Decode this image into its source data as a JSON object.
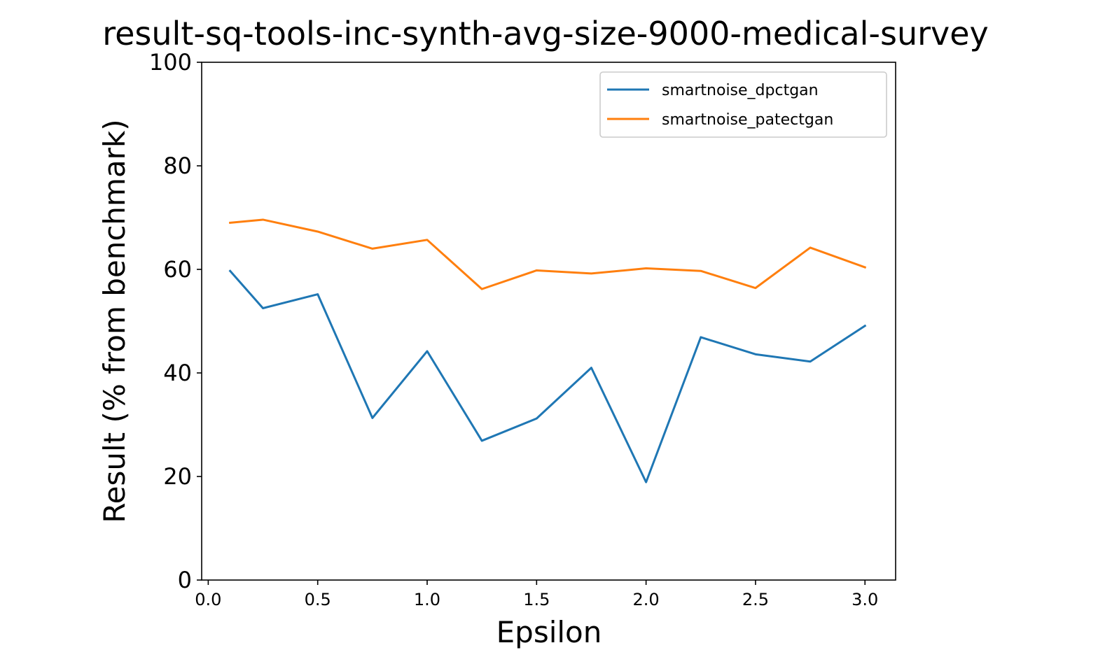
{
  "chart_data": {
    "type": "line",
    "title": "result-sq-tools-inc-synth-avg-size-9000-medical-survey",
    "xlabel": "Epsilon",
    "ylabel": "Result (% from benchmark)",
    "xlim": [
      -0.03,
      3.14
    ],
    "ylim": [
      0,
      100
    ],
    "xticks": [
      0.0,
      0.5,
      1.0,
      1.5,
      2.0,
      2.5,
      3.0
    ],
    "xtick_labels": [
      "0.0",
      "0.5",
      "1.0",
      "1.5",
      "2.0",
      "2.5",
      "3.0"
    ],
    "yticks": [
      0,
      20,
      40,
      60,
      80,
      100
    ],
    "ytick_labels": [
      "0",
      "20",
      "40",
      "60",
      "80",
      "100"
    ],
    "grid": false,
    "legend_position": "upper right",
    "x": [
      0.1,
      0.25,
      0.5,
      0.75,
      1.0,
      1.25,
      1.5,
      1.75,
      2.0,
      2.25,
      2.5,
      2.75,
      3.0
    ],
    "series": [
      {
        "name": "smartnoise_dpctgan",
        "color": "#1f77b4",
        "values": [
          59.7,
          52.5,
          55.2,
          31.3,
          44.2,
          26.9,
          31.2,
          41.0,
          18.9,
          46.9,
          43.6,
          42.2,
          49.1
        ]
      },
      {
        "name": "smartnoise_patectgan",
        "color": "#ff7f0e",
        "values": [
          69.0,
          69.6,
          67.3,
          64.0,
          65.7,
          56.2,
          59.8,
          59.2,
          60.2,
          59.7,
          56.4,
          64.2,
          60.4
        ]
      }
    ]
  }
}
